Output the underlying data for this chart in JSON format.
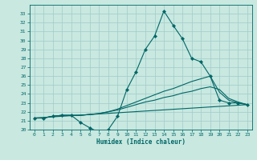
{
  "xlabel": "Humidex (Indice chaleur)",
  "xlim": [
    -0.5,
    23.5
  ],
  "ylim": [
    20,
    34
  ],
  "yticks": [
    20,
    21,
    22,
    23,
    24,
    25,
    26,
    27,
    28,
    29,
    30,
    31,
    32,
    33
  ],
  "xticks": [
    0,
    1,
    2,
    3,
    4,
    5,
    6,
    7,
    8,
    9,
    10,
    11,
    12,
    13,
    14,
    15,
    16,
    17,
    18,
    19,
    20,
    21,
    22,
    23
  ],
  "bg_color": "#c8e8e0",
  "line_color": "#006666",
  "grid_color": "#a0ccc8",
  "line1_x": [
    0,
    1,
    2,
    3,
    4,
    5,
    6,
    7,
    8,
    9,
    10,
    11,
    12,
    13,
    14,
    15,
    16,
    17,
    18,
    19,
    20,
    21,
    22,
    23
  ],
  "line1_y": [
    21.3,
    21.3,
    21.5,
    21.6,
    21.6,
    20.8,
    20.2,
    19.7,
    20.0,
    21.5,
    24.5,
    26.5,
    29.0,
    30.5,
    33.3,
    31.7,
    30.2,
    28.0,
    27.6,
    26.0,
    23.3,
    23.0,
    23.0,
    22.8
  ],
  "line2_x": [
    0,
    1,
    2,
    3,
    4,
    5,
    6,
    7,
    8,
    9,
    10,
    11,
    12,
    13,
    14,
    15,
    16,
    17,
    18,
    19,
    20,
    21,
    22,
    23
  ],
  "line2_y": [
    21.3,
    21.3,
    21.5,
    21.6,
    21.6,
    21.6,
    21.7,
    21.8,
    22.0,
    22.3,
    22.7,
    23.1,
    23.5,
    23.9,
    24.3,
    24.6,
    25.0,
    25.4,
    25.7,
    26.0,
    24.2,
    23.3,
    23.0,
    22.8
  ],
  "line3_x": [
    0,
    1,
    2,
    3,
    4,
    5,
    6,
    7,
    8,
    9,
    10,
    11,
    12,
    13,
    14,
    15,
    16,
    17,
    18,
    19,
    20,
    21,
    22,
    23
  ],
  "line3_y": [
    21.3,
    21.3,
    21.5,
    21.6,
    21.6,
    21.6,
    21.7,
    21.8,
    22.0,
    22.2,
    22.5,
    22.8,
    23.1,
    23.3,
    23.6,
    23.8,
    24.1,
    24.3,
    24.6,
    24.8,
    24.5,
    23.5,
    23.1,
    22.8
  ],
  "line4_x": [
    0,
    23
  ],
  "line4_y": [
    21.3,
    22.8
  ]
}
